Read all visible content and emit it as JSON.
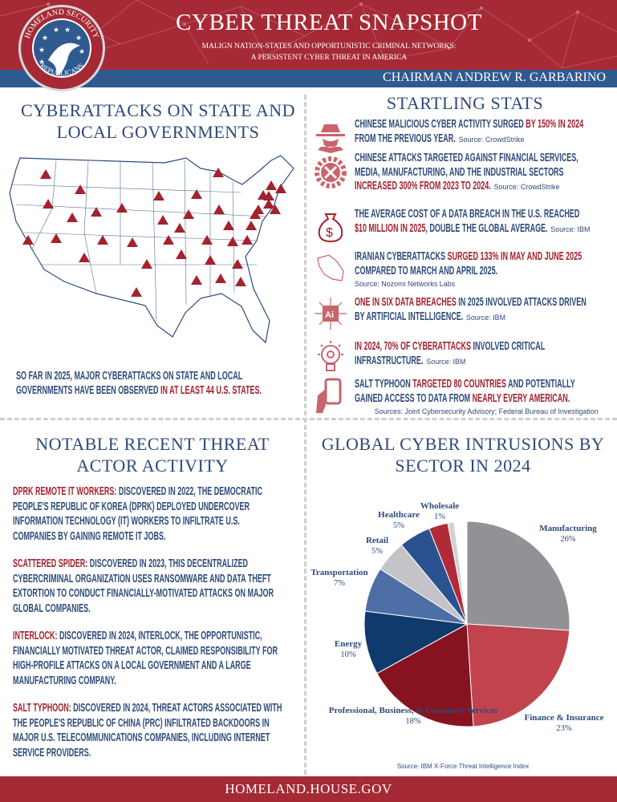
{
  "header": {
    "title": "CYBER THREAT SNAPSHOT",
    "subtitle_line1": "MALIGN NATION-STATES AND OPPORTUNISTIC CRIMINAL NETWORKS:",
    "subtitle_line2": "A PERSISTENT CYBER THREAT IN AMERICA",
    "chairman": "CHAIRMAN ANDREW R. GARBARINO",
    "logo": {
      "text_top": "HOMELAND SECURITY",
      "text_bottom": "REPUBLICANS"
    },
    "colors": {
      "red": "#a52a35",
      "blue": "#2f5a8f"
    }
  },
  "state_local": {
    "heading_line1": "CYBERATTACKS ON STATE AND",
    "heading_line2": "LOCAL GOVERNMENTS",
    "summary": [
      {
        "text": "SO FAR IN 2025, MAJOR CYBERATTACKS ON STATE AND LOCAL GOVERNMENTS HAVE BEEN OBSERVED ",
        "accent": false
      },
      {
        "text": "IN AT LEAST 44 U.S. STATES.",
        "accent": true
      }
    ]
  },
  "stats": {
    "heading": "STARTLING STATS",
    "items": [
      {
        "icon": "spy-icon",
        "segments": [
          {
            "text": "CHINESE MALICIOUS CYBER ACTIVITY SURGED ",
            "accent": false
          },
          {
            "text": "BY 150% IN 2024",
            "accent": true
          },
          {
            "text": " FROM THE PREVIOUS YEAR.",
            "accent": false
          }
        ],
        "source": "Source: CrowdStrike"
      },
      {
        "icon": "gear-icon",
        "segments": [
          {
            "text": "CHINESE ATTACKS TARGETED AGAINST FINANCIAL SERVICES, MEDIA, MANUFACTURING, AND THE INDUSTRIAL SECTORS ",
            "accent": false
          },
          {
            "text": "INCREASED 300% FROM 2023 TO 2024.",
            "accent": true
          }
        ],
        "source": "Source: CrowdStrike"
      },
      {
        "icon": "money-bag-icon",
        "segments": [
          {
            "text": "THE AVERAGE COST OF A DATA BREACH IN THE U.S. REACHED ",
            "accent": false
          },
          {
            "text": "$10 MILLION IN 2025",
            "accent": true
          },
          {
            "text": ", DOUBLE THE GLOBAL AVERAGE.",
            "accent": false
          }
        ],
        "source": "Source: IBM"
      },
      {
        "icon": "iran-map-icon",
        "segments": [
          {
            "text": "IRANIAN CYBERATTACKS ",
            "accent": false
          },
          {
            "text": "SURGED 133% IN MAY AND JUNE 2025",
            "accent": true
          },
          {
            "text": " COMPARED TO MARCH AND APRIL 2025.",
            "accent": false
          }
        ],
        "source": "Source: Nozomi Networks Labs"
      },
      {
        "icon": "ai-chip-icon",
        "segments": [
          {
            "text": "ONE IN SIX DATA BREACHES",
            "accent": true
          },
          {
            "text": " IN 2025 INVOLVED ATTACKS DRIVEN BY ARTIFICIAL INTELLIGENCE.",
            "accent": false
          }
        ],
        "source": "Source: IBM"
      },
      {
        "icon": "lightbulb-gear-icon",
        "segments": [
          {
            "text": "IN 2024, 70% OF CYBERATTACKS",
            "accent": true
          },
          {
            "text": " INVOLVED CRITICAL INFRASTRUCTURE.",
            "accent": false
          }
        ],
        "source": "Source: IBM"
      },
      {
        "icon": "phone-hand-icon",
        "segments": [
          {
            "text": "SALT TYPHOON ",
            "accent": false
          },
          {
            "text": "TARGETED 80 COUNTRIES",
            "accent": true
          },
          {
            "text": " AND POTENTIALLY GAINED ACCESS TO DATA FROM ",
            "accent": false
          },
          {
            "text": "NEARLY EVERY AMERICAN",
            "accent": true
          },
          {
            "text": ".",
            "accent": false
          }
        ],
        "source": "Sources: Joint Cybersecurity Advisory; Federal Bureau of Investigation"
      }
    ]
  },
  "actors": {
    "heading_line1": "NOTABLE RECENT THREAT",
    "heading_line2": "ACTOR ACTIVITY",
    "items": [
      {
        "name": "DPRK REMOTE IT WORKERS:",
        "text": " DISCOVERED IN 2022, THE DEMOCRATIC PEOPLE'S REPUBLIC OF KOREA (DPRK) DEPLOYED UNDERCOVER INFORMATION TECHNOLOGY (IT) WORKERS TO INFILTRATE U.S. COMPANIES BY GAINING REMOTE IT JOBS."
      },
      {
        "name": "SCATTERED SPIDER:",
        "text": " DISCOVERED IN 2023, THIS DECENTRALIZED CYBERCRIMINAL ORGANIZATION USES RANSOMWARE AND DATA THEFT EXTORTION TO CONDUCT FINANCIALLY-MOTIVATED ATTACKS ON MAJOR GLOBAL COMPANIES."
      },
      {
        "name": "INTERLOCK:",
        "text": " DISCOVERED IN 2024, INTERLOCK, THE OPPORTUNISTIC, FINANCIALLY MOTIVATED THREAT ACTOR, CLAIMED RESPONSIBILITY FOR HIGH-PROFILE ATTACKS ON A LOCAL GOVERNMENT AND A LARGE MANUFACTURING COMPANY."
      },
      {
        "name": "SALT TYPHOON:",
        "text": " DISCOVERED IN 2024, THREAT ACTORS ASSOCIATED WITH THE PEOPLE'S REPUBLIC OF CHINA (PRC) INFILTRATED BACKDOORS IN MAJOR U.S. TELECOMMUNICATIONS COMPANIES, INCLUDING INTERNET SERVICE PROVIDERS."
      }
    ]
  },
  "chart_data": {
    "type": "pie",
    "title": "GLOBAL CYBER INTRUSIONS BY SECTOR IN 2024",
    "source": "Source: IBM X-Force Threat Intelligence Index",
    "slices": [
      {
        "label": "Manufacturing",
        "value": 26,
        "display": "26%",
        "color": "#929296"
      },
      {
        "label": "Finance & Insurance",
        "value": 23,
        "display": "23%",
        "color": "#c0434d"
      },
      {
        "label": "Professional, Business, & Consumer Services",
        "value": 18,
        "display": "18%",
        "color": "#86131f"
      },
      {
        "label": "Energy",
        "value": 10,
        "display": "10%",
        "color": "#0f3a6b"
      },
      {
        "label": "Transportation",
        "value": 7,
        "display": "7%",
        "color": "#4d6fa5"
      },
      {
        "label": "Retail",
        "value": 5,
        "display": "5%",
        "color": "#c4c4c8"
      },
      {
        "label": "Healthcare",
        "value": 5,
        "display": "5%",
        "color": "#2a5290"
      },
      {
        "label": "",
        "value": 3,
        "display": "",
        "color": "#b02a38"
      },
      {
        "label": "Wholesale",
        "value": 1,
        "display": "1%",
        "color": "#d2d2d6"
      }
    ]
  },
  "footer": {
    "url": "HOMELAND.HOUSE.GOV"
  },
  "colors": {
    "accent_red": "#a3222f",
    "text_blue": "#2d4a7a",
    "icon_pink": "#c9646c"
  }
}
